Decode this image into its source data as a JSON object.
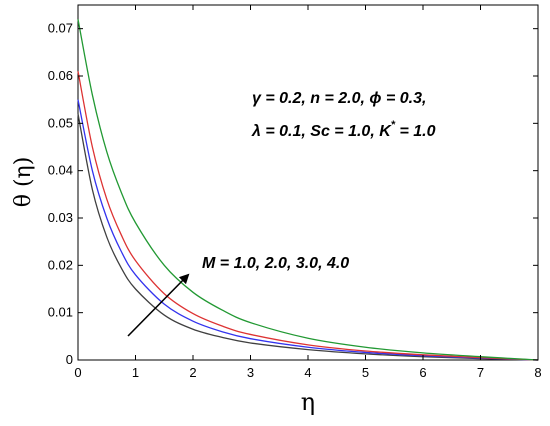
{
  "chart_data": {
    "type": "line",
    "xlabel": "η",
    "ylabel": "θ (η)",
    "xlim": [
      0,
      8
    ],
    "ylim": [
      0,
      0.075
    ],
    "xticks": [
      "0",
      "1",
      "2",
      "3",
      "4",
      "5",
      "6",
      "7",
      "8"
    ],
    "yticks": [
      "0",
      "0.01",
      "0.02",
      "0.03",
      "0.04",
      "0.05",
      "0.06",
      "0.07"
    ],
    "grid": false,
    "annotations": {
      "params_line1": "γ = 0.2,  n = 2.0,  ϕ = 0.3,",
      "params_line2_prefix": "λ = 0.1,  Sc = 1.0,  K",
      "params_line2_sup": "*",
      "params_line2_suffix": " = 1.0",
      "arrow_label": "M = 1.0, 2.0, 3.0, 4.0"
    },
    "series": [
      {
        "color": "#404040",
        "x": [
          0,
          0.25,
          0.5,
          0.75,
          1,
          1.5,
          2,
          2.5,
          3,
          4,
          5,
          6,
          7,
          8
        ],
        "y": [
          0.052,
          0.036,
          0.026,
          0.0195,
          0.015,
          0.0095,
          0.0065,
          0.0048,
          0.0036,
          0.0022,
          0.0013,
          0.0007,
          0.0003,
          0.0
        ]
      },
      {
        "color": "#3333ee",
        "x": [
          0,
          0.25,
          0.5,
          0.75,
          1,
          1.5,
          2,
          2.5,
          3,
          4,
          5,
          6,
          7,
          8
        ],
        "y": [
          0.055,
          0.04,
          0.03,
          0.023,
          0.018,
          0.0118,
          0.0082,
          0.006,
          0.0045,
          0.0027,
          0.0016,
          0.0009,
          0.0004,
          0.0
        ]
      },
      {
        "color": "#dd3333",
        "x": [
          0,
          0.25,
          0.5,
          0.75,
          1,
          1.5,
          2,
          2.5,
          3,
          4,
          5,
          6,
          7,
          8
        ],
        "y": [
          0.061,
          0.045,
          0.034,
          0.0265,
          0.021,
          0.014,
          0.0098,
          0.0072,
          0.0054,
          0.0032,
          0.0019,
          0.0011,
          0.0005,
          0.0
        ]
      },
      {
        "color": "#229933",
        "x": [
          0,
          0.25,
          0.5,
          0.75,
          1,
          1.5,
          2,
          2.5,
          3,
          4,
          5,
          6,
          7,
          8
        ],
        "y": [
          0.072,
          0.056,
          0.044,
          0.0355,
          0.029,
          0.02,
          0.0143,
          0.0106,
          0.0079,
          0.0046,
          0.0027,
          0.0015,
          0.0007,
          0.0
        ]
      }
    ]
  }
}
